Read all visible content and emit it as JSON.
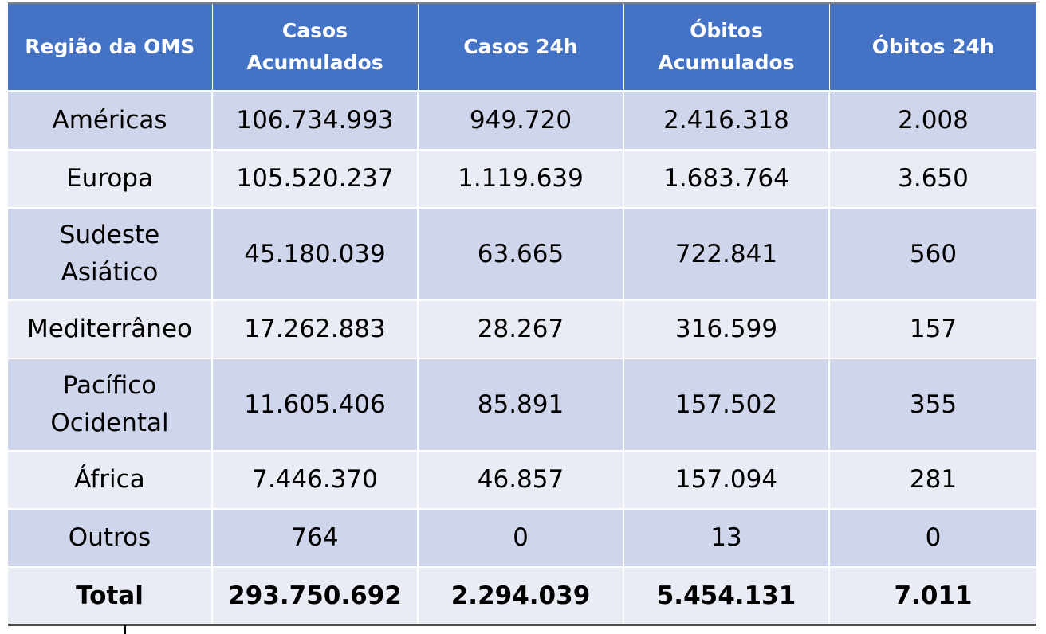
{
  "table": {
    "headers": [
      "Região da OMS",
      "Casos Acumulados",
      "Casos 24h",
      "Óbitos Acumulados",
      "Óbitos 24h"
    ],
    "rows": [
      {
        "region": "Américas",
        "casos_acumulados": "106.734.993",
        "casos_24h": "949.720",
        "obitos_acumulados": "2.416.318",
        "obitos_24h": "2.008"
      },
      {
        "region": "Europa",
        "casos_acumulados": "105.520.237",
        "casos_24h": "1.119.639",
        "obitos_acumulados": "1.683.764",
        "obitos_24h": "3.650"
      },
      {
        "region": "Sudeste Asiático",
        "casos_acumulados": "45.180.039",
        "casos_24h": "63.665",
        "obitos_acumulados": "722.841",
        "obitos_24h": "560"
      },
      {
        "region": "Mediterrâneo",
        "casos_acumulados": "17.262.883",
        "casos_24h": "28.267",
        "obitos_acumulados": "316.599",
        "obitos_24h": "157"
      },
      {
        "region": "Pacífico Ocidental",
        "casos_acumulados": "11.605.406",
        "casos_24h": "85.891",
        "obitos_acumulados": "157.502",
        "obitos_24h": "355"
      },
      {
        "region": "África",
        "casos_acumulados": "7.446.370",
        "casos_24h": "46.857",
        "obitos_acumulados": "157.094",
        "obitos_24h": "281"
      },
      {
        "region": "Outros",
        "casos_acumulados": "764",
        "casos_24h": "0",
        "obitos_acumulados": "13",
        "obitos_24h": "0"
      }
    ],
    "total": {
      "label": "Total",
      "casos_acumulados": "293.750.692",
      "casos_24h": "2.294.039",
      "obitos_acumulados": "5.454.131",
      "obitos_24h": "7.011"
    }
  },
  "colors": {
    "header_bg": "#4472c4",
    "row_dark": "#cfd5ea",
    "row_light": "#e9ebf5"
  }
}
